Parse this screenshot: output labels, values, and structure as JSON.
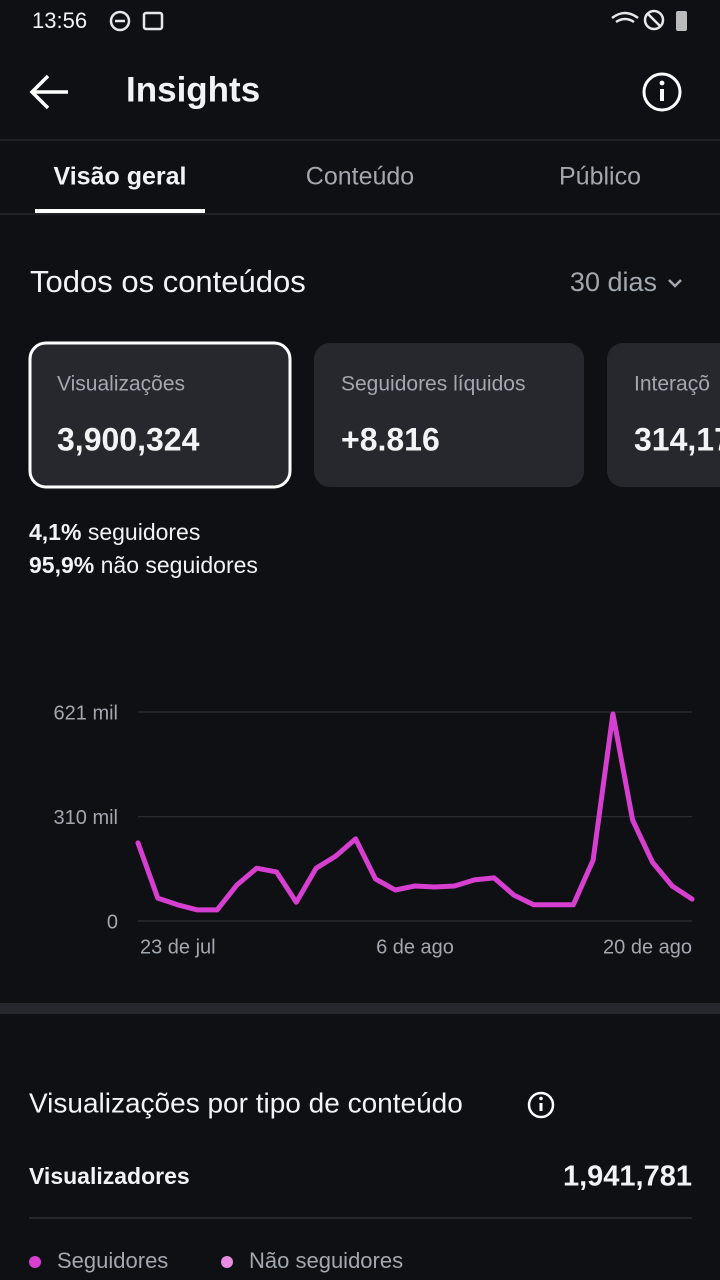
{
  "status_bar": {
    "time": "13:56"
  },
  "header": {
    "title": "Insights"
  },
  "tabs": [
    "Visão geral",
    "Conteúdo",
    "Público"
  ],
  "section": {
    "title": "Todos os conteúdos",
    "period": "30 dias"
  },
  "cards": [
    {
      "label": "Visualizações",
      "value": "3,900,324"
    },
    {
      "label": "Seguidores líquidos",
      "value": "+8.816"
    },
    {
      "label": "Interaçõ",
      "value": "314,17"
    }
  ],
  "breakdown": [
    {
      "percent": "4,1%",
      "label": "seguidores"
    },
    {
      "percent": "95,9%",
      "label": "não seguidores"
    }
  ],
  "chart_data": {
    "type": "line",
    "categories": [
      "23 de jul",
      null,
      null,
      null,
      null,
      null,
      null,
      null,
      null,
      null,
      null,
      null,
      null,
      null,
      "6 de ago",
      null,
      null,
      null,
      null,
      null,
      null,
      null,
      null,
      null,
      null,
      null,
      null,
      null,
      "20 de ago"
    ],
    "values": [
      232000,
      68000,
      48000,
      33000,
      33000,
      107000,
      157000,
      146000,
      56000,
      157000,
      193000,
      244000,
      125000,
      92000,
      104000,
      101000,
      104000,
      122000,
      128000,
      77000,
      48000,
      48000,
      48000,
      181000,
      615000,
      300000,
      175000,
      104000,
      65000
    ],
    "color": "#d63fd0",
    "ylim": [
      0,
      621000
    ],
    "yticks": [
      0,
      {
        "value": 310000,
        "label": "310 mil"
      },
      {
        "value": 621000,
        "label": "621 mil"
      }
    ],
    "grid": true
  },
  "content_type": {
    "title": "Visualizações por tipo de conteúdo",
    "row_label": "Visualizadores",
    "row_value": "1,941,781",
    "legend": [
      {
        "name": "Seguidores",
        "color": "#d63fd0"
      },
      {
        "name": "Não seguidores",
        "color": "#e88de0"
      }
    ]
  }
}
